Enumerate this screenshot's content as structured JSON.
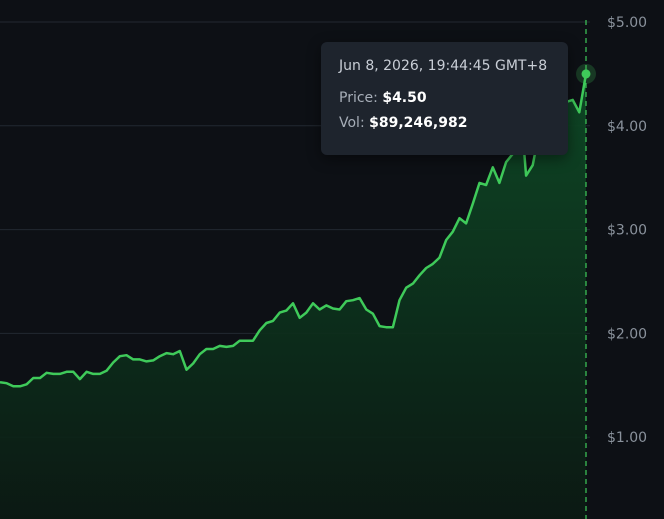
{
  "chart_data": {
    "type": "area",
    "ylim": [
      0,
      5
    ],
    "y_ticks": [
      "$1.00",
      "$2.00",
      "$3.00",
      "$4.00",
      "$5.00"
    ],
    "grid": true,
    "line_color": "#3fca5a",
    "fill_color": "#0f3a1f",
    "points_per_day": 1,
    "y": [
      1.53,
      1.52,
      1.49,
      1.49,
      1.51,
      1.57,
      1.57,
      1.62,
      1.61,
      1.61,
      1.63,
      1.63,
      1.56,
      1.63,
      1.61,
      1.61,
      1.64,
      1.72,
      1.78,
      1.79,
      1.75,
      1.75,
      1.73,
      1.74,
      1.78,
      1.81,
      1.8,
      1.83,
      1.65,
      1.71,
      1.8,
      1.85,
      1.85,
      1.88,
      1.87,
      1.88,
      1.93,
      1.93,
      1.93,
      2.03,
      2.1,
      2.12,
      2.2,
      2.22,
      2.29,
      2.15,
      2.2,
      2.29,
      2.23,
      2.27,
      2.24,
      2.23,
      2.31,
      2.32,
      2.34,
      2.23,
      2.19,
      2.07,
      2.06,
      2.06,
      2.32,
      2.44,
      2.48,
      2.56,
      2.63,
      2.67,
      2.73,
      2.9,
      2.98,
      3.11,
      3.06,
      3.25,
      3.45,
      3.43,
      3.6,
      3.45,
      3.65,
      3.73,
      4.32,
      3.52,
      3.62,
      3.95,
      4.15,
      4.2,
      4.12,
      4.23,
      4.25,
      4.13,
      4.5
    ],
    "hover": {
      "time": "Jun 8, 2026, 19:44:45 GMT+8",
      "price_label": "Price:",
      "price": "$4.50",
      "vol_label": "Vol:",
      "vol": "$89,246,982",
      "price_value": 4.5
    }
  }
}
